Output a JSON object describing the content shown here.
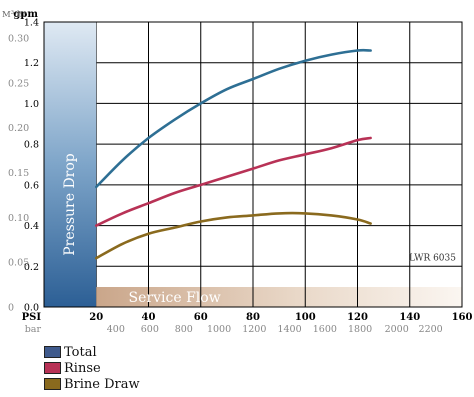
{
  "chart_data": {
    "type": "line",
    "annotation": "LWR 6035",
    "y_axis_left_inner": {
      "unit": "gpm",
      "range": [
        0,
        1.4
      ],
      "ticks": [
        "0.0",
        "0.2",
        "0.4",
        "0.6",
        "0.8",
        "1.0",
        "1.2",
        "1.4"
      ]
    },
    "y_axis_left_outer": {
      "unit": "M³/hr",
      "range": [
        0,
        0.3
      ],
      "ticks": [
        "0",
        "0.05",
        "0.10",
        "0.15",
        "0.20",
        "0.25",
        "0.30"
      ]
    },
    "x_axis_top": {
      "unit": "PSI",
      "range": [
        0,
        160
      ],
      "ticks": [
        "20",
        "40",
        "60",
        "80",
        "100",
        "120",
        "140",
        "160"
      ]
    },
    "x_axis_bottom": {
      "unit": "bar",
      "ticks": [
        "400",
        "600",
        "800",
        "1000",
        "1200",
        "1400",
        "1600",
        "1800",
        "2000",
        "2200"
      ]
    },
    "y_label_vertical": "Pressure Drop",
    "x_label_band": "Service Flow",
    "ylim": [
      0,
      1.4
    ],
    "xlim": [
      0,
      160
    ],
    "grid": true,
    "series": [
      {
        "name": "Total",
        "color": "#2e6f94",
        "x": [
          20,
          30,
          40,
          50,
          60,
          70,
          80,
          90,
          100,
          110,
          120,
          125
        ],
        "y": [
          0.59,
          0.72,
          0.83,
          0.92,
          1.0,
          1.07,
          1.12,
          1.17,
          1.21,
          1.24,
          1.26,
          1.26
        ]
      },
      {
        "name": "Rinse",
        "color": "#b83256",
        "x": [
          20,
          30,
          40,
          50,
          60,
          70,
          80,
          90,
          100,
          110,
          120,
          125
        ],
        "y": [
          0.4,
          0.46,
          0.51,
          0.56,
          0.6,
          0.64,
          0.68,
          0.72,
          0.75,
          0.78,
          0.82,
          0.83
        ]
      },
      {
        "name": "Brine Draw",
        "color": "#8a6a1e",
        "x": [
          20,
          30,
          40,
          50,
          60,
          70,
          80,
          90,
          100,
          110,
          120,
          125
        ],
        "y": [
          0.24,
          0.31,
          0.36,
          0.39,
          0.42,
          0.44,
          0.45,
          0.46,
          0.46,
          0.45,
          0.43,
          0.41
        ]
      }
    ]
  },
  "legend": {
    "items": [
      {
        "label": "Total",
        "color": "#3f5a8c"
      },
      {
        "label": "Rinse",
        "color": "#b83256"
      },
      {
        "label": "Brine Draw",
        "color": "#8a6a1e"
      }
    ]
  }
}
